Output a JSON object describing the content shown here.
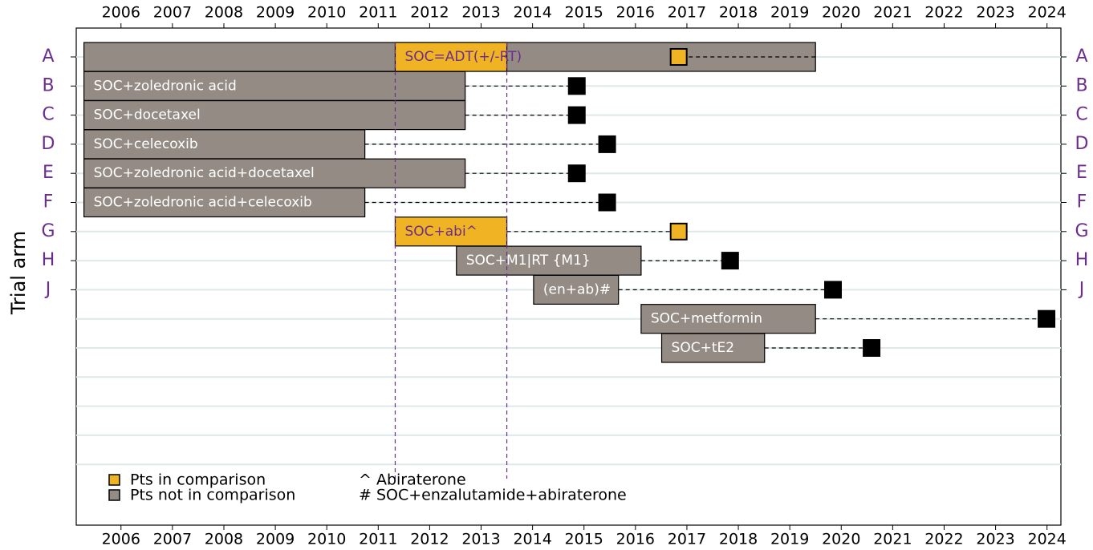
{
  "chart_data": {
    "type": "gantt",
    "ylabel": "Trial arm",
    "xlim": [
      2005.63,
      2024.77
    ],
    "xticks": [
      {
        "value": 2006.5,
        "label": "2006"
      },
      {
        "value": 2007.5,
        "label": "2007"
      },
      {
        "value": 2008.5,
        "label": "2008"
      },
      {
        "value": 2009.5,
        "label": "2009"
      },
      {
        "value": 2010.5,
        "label": "2010"
      },
      {
        "value": 2011.5,
        "label": "2011"
      },
      {
        "value": 2012.5,
        "label": "2012"
      },
      {
        "value": 2013.5,
        "label": "2013"
      },
      {
        "value": 2014.5,
        "label": "2014"
      },
      {
        "value": 2015.5,
        "label": "2015"
      },
      {
        "value": 2016.5,
        "label": "2016"
      },
      {
        "value": 2017.5,
        "label": "2017"
      },
      {
        "value": 2018.5,
        "label": "2018"
      },
      {
        "value": 2019.5,
        "label": "2019"
      },
      {
        "value": 2020.5,
        "label": "2020"
      },
      {
        "value": 2021.5,
        "label": "2021"
      },
      {
        "value": 2022.5,
        "label": "2022"
      },
      {
        "value": 2023.5,
        "label": "2023"
      },
      {
        "value": 2024.5,
        "label": "2024"
      }
    ],
    "arm_color": "#6b2e8c",
    "grid_color": "#dde9e9",
    "grid": true,
    "rows": [
      {
        "arm": "A",
        "bars": [
          {
            "start": 2005.78,
            "end": 2020.0,
            "color": "#948b84"
          },
          {
            "start": 2011.83,
            "end": 2014.0,
            "color": "#f0b323",
            "label": "SOC=ADT(+/-RT)"
          }
        ],
        "marker": {
          "value": 2017.34,
          "color": "#f0b323"
        }
      },
      {
        "arm": "B",
        "bars": [
          {
            "start": 2005.78,
            "end": 2013.19,
            "color": "#948b84",
            "label": "SOC+zoledronic acid"
          }
        ],
        "marker": {
          "value": 2015.36,
          "color": "#000000"
        }
      },
      {
        "arm": "C",
        "bars": [
          {
            "start": 2005.78,
            "end": 2013.19,
            "color": "#948b84",
            "label": "SOC+docetaxel"
          }
        ],
        "marker": {
          "value": 2015.36,
          "color": "#000000"
        }
      },
      {
        "arm": "D",
        "bars": [
          {
            "start": 2005.78,
            "end": 2011.24,
            "color": "#948b84",
            "label": "SOC+celecoxib"
          }
        ],
        "marker": {
          "value": 2015.95,
          "color": "#000000"
        }
      },
      {
        "arm": "E",
        "bars": [
          {
            "start": 2005.78,
            "end": 2013.19,
            "color": "#948b84",
            "label": "SOC+zoledronic acid+docetaxel"
          }
        ],
        "marker": {
          "value": 2015.36,
          "color": "#000000"
        }
      },
      {
        "arm": "F",
        "bars": [
          {
            "start": 2005.78,
            "end": 2011.24,
            "color": "#948b84",
            "label": "SOC+zoledronic acid+celecoxib"
          }
        ],
        "marker": {
          "value": 2015.95,
          "color": "#000000"
        }
      },
      {
        "arm": "G",
        "bars": [
          {
            "start": 2011.83,
            "end": 2014.0,
            "color": "#f0b323",
            "label": "SOC+abi^"
          }
        ],
        "marker": {
          "value": 2017.34,
          "color": "#f0b323"
        }
      },
      {
        "arm": "H",
        "bars": [
          {
            "start": 2013.02,
            "end": 2016.61,
            "color": "#948b84",
            "label": "SOC+M1|RT {M1}"
          }
        ],
        "marker": {
          "value": 2018.34,
          "color": "#000000"
        }
      },
      {
        "arm": "J",
        "bars": [
          {
            "start": 2014.52,
            "end": 2016.17,
            "color": "#948b84",
            "label": "(en+ab)#"
          }
        ],
        "marker": {
          "value": 2020.34,
          "color": "#000000"
        }
      },
      {
        "arm": null,
        "bars": [
          {
            "start": 2016.61,
            "end": 2020.0,
            "color": "#948b84",
            "label": "SOC+metformin"
          }
        ],
        "marker": {
          "value": 2024.49,
          "color": "#000000"
        }
      },
      {
        "arm": null,
        "bars": [
          {
            "start": 2017.01,
            "end": 2019.01,
            "color": "#948b84",
            "label": "SOC+tE2"
          }
        ],
        "marker": {
          "value": 2021.09,
          "color": "#000000"
        }
      },
      {
        "arm": null
      },
      {
        "arm": null
      },
      {
        "arm": null
      },
      {
        "arm": null
      }
    ],
    "reference_lines": [
      2011.83,
      2014.0
    ],
    "legend": [
      {
        "name": "Pts in comparison",
        "color": "#f0b323"
      },
      {
        "name": "Pts not in comparison",
        "color": "#948b84"
      }
    ],
    "notes": [
      "^ Abiraterone",
      "# SOC+enzalutamide+abiraterone"
    ]
  }
}
